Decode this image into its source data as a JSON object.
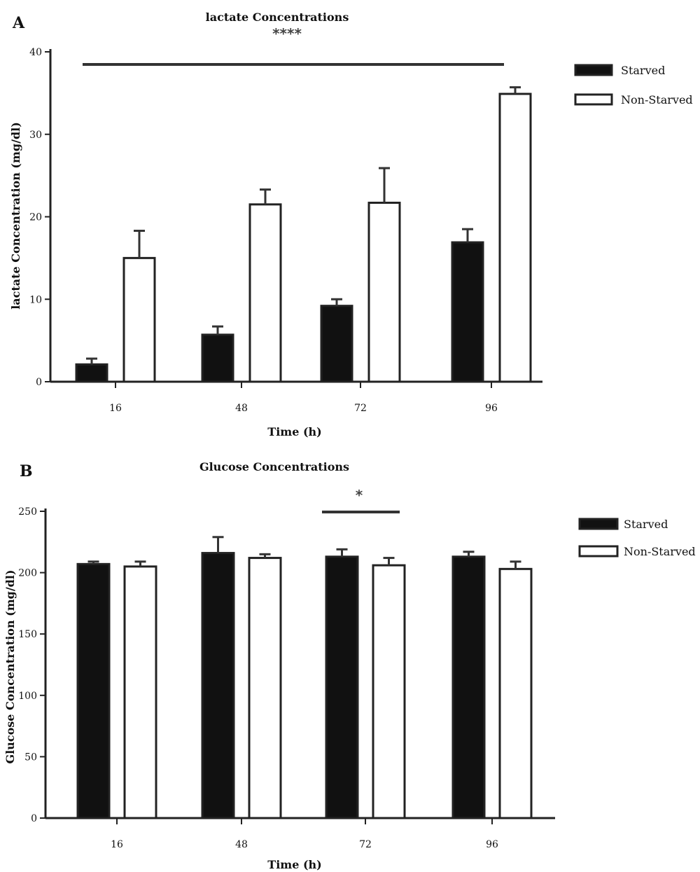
{
  "chart_data": [
    {
      "panel": "A",
      "type": "bar",
      "title": "lactate Concentrations",
      "xlabel": "Time (h)",
      "ylabel": "lactate Concentration (mg/dl)",
      "categories": [
        "16",
        "48",
        "72",
        "96"
      ],
      "ylim": [
        0,
        40
      ],
      "yticks": [
        0,
        10,
        20,
        30,
        40
      ],
      "series": [
        {
          "name": "Starved",
          "values": [
            2.1,
            5.7,
            9.2,
            16.9
          ],
          "errors": [
            0.7,
            1.0,
            0.8,
            1.6
          ],
          "fill": "#111111"
        },
        {
          "name": "Non-Starved",
          "values": [
            15.0,
            21.5,
            21.7,
            34.9
          ],
          "errors": [
            3.3,
            1.8,
            4.2,
            0.8
          ],
          "fill": "#ffffff"
        }
      ],
      "significance": {
        "label": "****",
        "span": [
          "16",
          "96"
        ]
      },
      "legend": "top-right",
      "grid": false
    },
    {
      "panel": "B",
      "type": "bar",
      "title": "Glucose Concentrations",
      "xlabel": "Time (h)",
      "ylabel": "Glucose Concentration (mg/dl)",
      "categories": [
        "16",
        "48",
        "72",
        "96"
      ],
      "ylim": [
        0,
        250
      ],
      "yticks": [
        0,
        50,
        100,
        150,
        200,
        250
      ],
      "series": [
        {
          "name": "Starved",
          "values": [
            207,
            216,
            213,
            213
          ],
          "errors": [
            2,
            13,
            6,
            4
          ],
          "fill": "#111111"
        },
        {
          "name": "Non-Starved",
          "values": [
            205,
            212,
            206,
            203
          ],
          "errors": [
            4,
            3,
            6,
            6
          ],
          "fill": "#ffffff"
        }
      ],
      "significance": {
        "label": "*",
        "span": [
          "72",
          "72"
        ]
      },
      "legend": "top-right",
      "grid": false
    }
  ]
}
